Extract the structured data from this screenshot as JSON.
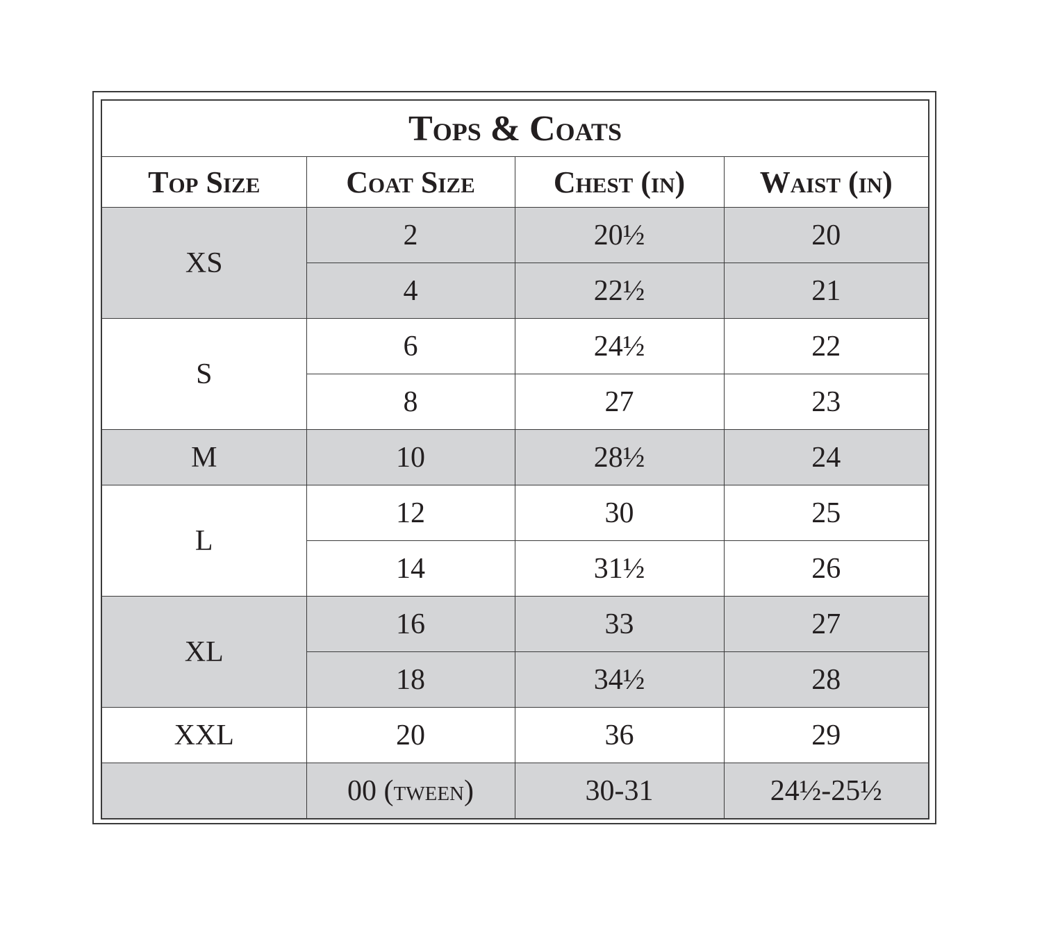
{
  "title": "Tops & Coats",
  "columns": [
    "Top Size",
    "Coat Size",
    "Chest (in)",
    "Waist (in)"
  ],
  "groups": [
    {
      "top": "XS",
      "shade": true,
      "rows": [
        [
          "2",
          "20½",
          "20"
        ],
        [
          "4",
          "22½",
          "21"
        ]
      ]
    },
    {
      "top": "S",
      "shade": false,
      "rows": [
        [
          "6",
          "24½",
          "22"
        ],
        [
          "8",
          "27",
          "23"
        ]
      ]
    },
    {
      "top": "M",
      "shade": true,
      "rows": [
        [
          "10",
          "28½",
          "24"
        ]
      ]
    },
    {
      "top": "L",
      "shade": false,
      "rows": [
        [
          "12",
          "30",
          "25"
        ],
        [
          "14",
          "31½",
          "26"
        ]
      ]
    },
    {
      "top": "XL",
      "shade": true,
      "rows": [
        [
          "16",
          "33",
          "27"
        ],
        [
          "18",
          "34½",
          "28"
        ]
      ]
    },
    {
      "top": "XXL",
      "shade": false,
      "rows": [
        [
          "20",
          "36",
          "29"
        ]
      ]
    },
    {
      "shade": true,
      "rows": [
        [
          "00 (tween)",
          "30-31",
          "24½-25½"
        ]
      ]
    }
  ]
}
